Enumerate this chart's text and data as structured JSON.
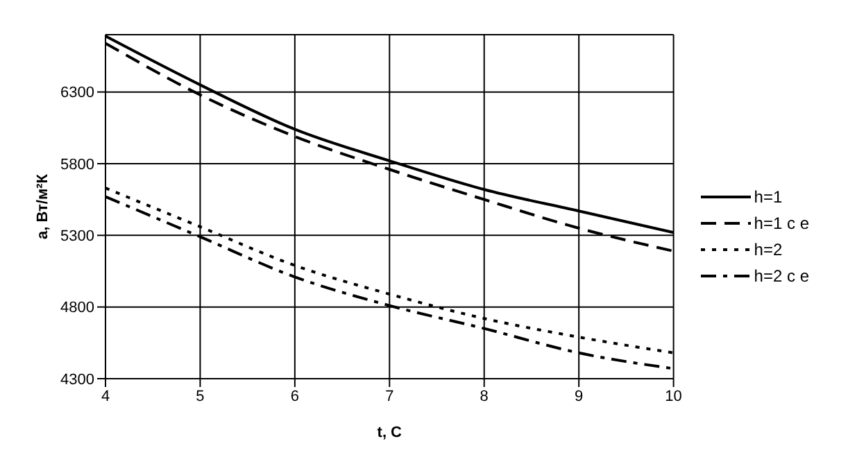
{
  "chart_data": {
    "type": "line",
    "xlabel": "t, C",
    "ylabel": "a, Вт/м²К",
    "x": [
      4,
      5,
      6,
      7,
      8,
      9,
      10
    ],
    "series": [
      {
        "name": "h=1",
        "color": "#000000",
        "line_style": "solid",
        "values": [
          6690,
          6350,
          6040,
          5820,
          5620,
          5470,
          5320
        ]
      },
      {
        "name": "h=1 с е",
        "color": "#000000",
        "line_style": "dashed",
        "values": [
          6640,
          6280,
          5990,
          5760,
          5550,
          5350,
          5190
        ]
      },
      {
        "name": "h=2",
        "color": "#000000",
        "line_style": "dotted",
        "values": [
          5630,
          5360,
          5090,
          4890,
          4720,
          4590,
          4480
        ]
      },
      {
        "name": "h=2 с е",
        "color": "#000000",
        "line_style": "dashdot",
        "values": [
          5570,
          5290,
          5010,
          4810,
          4650,
          4480,
          4370
        ]
      }
    ],
    "xlim": [
      4,
      10
    ],
    "xticks": [
      4,
      5,
      6,
      7,
      8,
      9,
      10
    ],
    "ylim": [
      4300,
      6700
    ],
    "yticks": [
      4300,
      4800,
      5300,
      5800,
      6300
    ],
    "grid": true,
    "legend": "right",
    "marker": "none"
  }
}
